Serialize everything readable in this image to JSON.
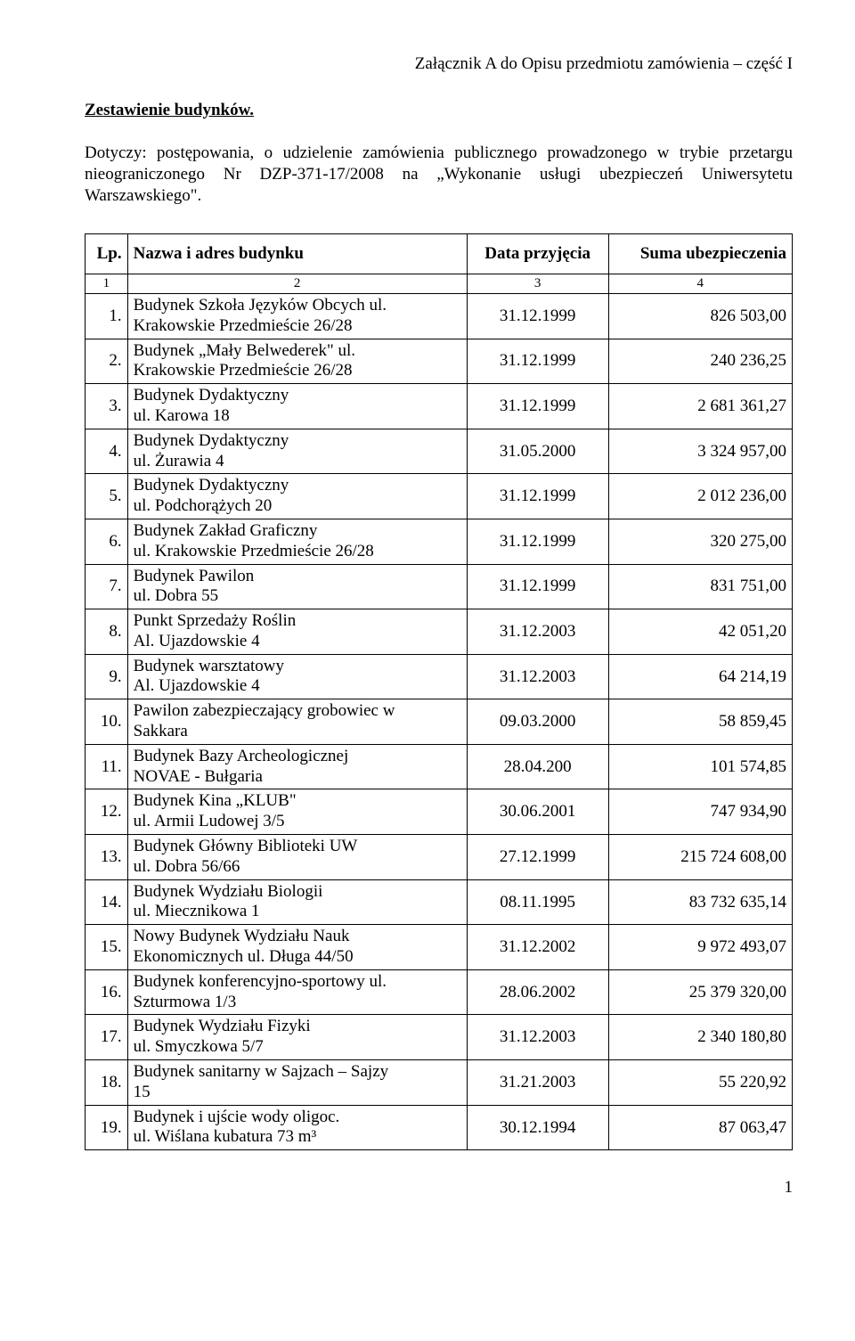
{
  "topRight": "Załącznik A do Opisu przedmiotu zamówienia – część I",
  "heading": "Zestawienie budynków.",
  "intro": "Dotyczy: postępowania, o udzielenie zamówienia publicznego prowadzonego w trybie przetargu nieograniczonego Nr DZP-371-17/2008 na „Wykonanie usługi ubezpieczeń Uniwersytetu Warszawskiego\".",
  "columns": {
    "lp": "Lp.",
    "name": "Nazwa i adres budynku",
    "date": "Data przyjęcia",
    "sum": "Suma ubezpieczenia"
  },
  "subhead": {
    "c1": "1",
    "c2": "2",
    "c3": "3",
    "c4": "4"
  },
  "rows": [
    {
      "lp": "1.",
      "name": "Budynek Szkoła Języków Obcych ul.\nKrakowskie Przedmieście 26/28",
      "date": "31.12.1999",
      "sum": "826 503,00"
    },
    {
      "lp": "2.",
      "name": "Budynek „Mały Belwederek\" ul.\nKrakowskie Przedmieście 26/28",
      "date": "31.12.1999",
      "sum": "240 236,25"
    },
    {
      "lp": "3.",
      "name": "Budynek Dydaktyczny\nul. Karowa 18",
      "date": "31.12.1999",
      "sum": "2 681 361,27"
    },
    {
      "lp": "4.",
      "name": "Budynek Dydaktyczny\nul. Żurawia 4",
      "date": "31.05.2000",
      "sum": "3 324 957,00"
    },
    {
      "lp": "5.",
      "name": "Budynek Dydaktyczny\nul. Podchorążych 20",
      "date": "31.12.1999",
      "sum": "2 012 236,00"
    },
    {
      "lp": "6.",
      "name": "Budynek Zakład Graficzny\nul. Krakowskie Przedmieście 26/28",
      "date": "31.12.1999",
      "sum": "320 275,00"
    },
    {
      "lp": "7.",
      "name": "Budynek Pawilon\nul. Dobra 55",
      "date": "31.12.1999",
      "sum": "831 751,00"
    },
    {
      "lp": "8.",
      "name": "Punkt Sprzedaży Roślin\nAl. Ujazdowskie 4",
      "date": "31.12.2003",
      "sum": "42 051,20"
    },
    {
      "lp": "9.",
      "name": "Budynek warsztatowy\nAl. Ujazdowskie 4",
      "date": "31.12.2003",
      "sum": "64 214,19"
    },
    {
      "lp": "10.",
      "name": "Pawilon zabezpieczający grobowiec w\nSakkara",
      "date": "09.03.2000",
      "sum": "58 859,45"
    },
    {
      "lp": "11.",
      "name": "Budynek Bazy Archeologicznej\nNOVAE - Bułgaria",
      "date": "28.04.200",
      "sum": "101 574,85"
    },
    {
      "lp": "12.",
      "name": "Budynek Kina „KLUB\"\nul. Armii Ludowej 3/5",
      "date": "30.06.2001",
      "sum": "747 934,90"
    },
    {
      "lp": "13.",
      "name": "Budynek Główny Biblioteki UW\nul. Dobra 56/66",
      "date": "27.12.1999",
      "sum": "215 724 608,00"
    },
    {
      "lp": "14.",
      "name": "Budynek Wydziału Biologii\nul. Miecznikowa 1",
      "date": "08.11.1995",
      "sum": "83 732 635,14"
    },
    {
      "lp": "15.",
      "name": "Nowy Budynek Wydziału Nauk\nEkonomicznych ul. Długa 44/50",
      "date": "31.12.2002",
      "sum": "9 972 493,07"
    },
    {
      "lp": "16.",
      "name": "Budynek konferencyjno-sportowy ul.\nSzturmowa 1/3",
      "date": "28.06.2002",
      "sum": "25 379 320,00"
    },
    {
      "lp": "17.",
      "name": "Budynek Wydziału Fizyki\nul. Smyczkowa 5/7",
      "date": "31.12.2003",
      "sum": "2 340 180,80"
    },
    {
      "lp": "18.",
      "name": "Budynek sanitarny w Sajzach – Sajzy\n15",
      "date": "31.21.2003",
      "sum": "55 220,92"
    },
    {
      "lp": "19.",
      "name": "Budynek i ujście wody oligoc.\nul. Wiślana kubatura 73 m³",
      "date": "30.12.1994",
      "sum": "87 063,47"
    }
  ],
  "pageNumber": "1"
}
